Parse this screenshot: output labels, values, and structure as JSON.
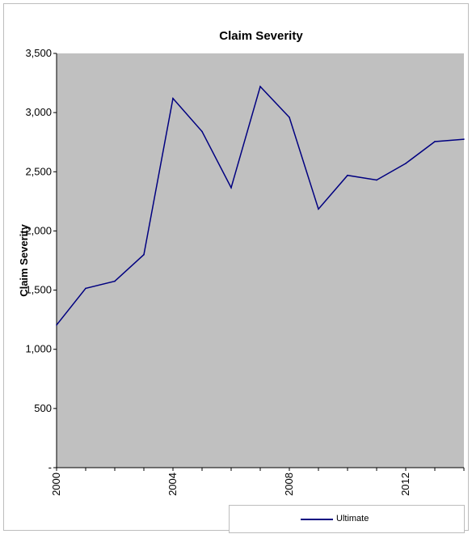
{
  "chart_data": {
    "type": "line",
    "title": "Claim Severity",
    "ylabel": "Claim Severity",
    "xlabel": "",
    "x": [
      2000,
      2001,
      2002,
      2003,
      2004,
      2005,
      2006,
      2007,
      2008,
      2009,
      2010,
      2011,
      2012,
      2013,
      2014
    ],
    "series": [
      {
        "name": "Ultimate",
        "color": "#000080",
        "values": [
          1205,
          1515,
          1575,
          1800,
          3120,
          2840,
          2365,
          3220,
          2960,
          2185,
          2470,
          2430,
          2570,
          2755,
          2775
        ]
      }
    ],
    "ylim": [
      0,
      3500
    ],
    "yticks": [
      {
        "value": 0,
        "label": "-"
      },
      {
        "value": 500,
        "label": "500"
      },
      {
        "value": 1000,
        "label": "1,000"
      },
      {
        "value": 1500,
        "label": "1,500"
      },
      {
        "value": 2000,
        "label": "2,000"
      },
      {
        "value": 2500,
        "label": "2,500"
      },
      {
        "value": 3000,
        "label": "3,000"
      },
      {
        "value": 3500,
        "label": "3,500"
      }
    ],
    "xticklabels": [
      "2000",
      "2004",
      "2008",
      "2012"
    ],
    "xlim": [
      2000,
      2014
    ],
    "plot_background": "#c0c0c0",
    "grid": false,
    "legend_position": "bottom-right"
  }
}
